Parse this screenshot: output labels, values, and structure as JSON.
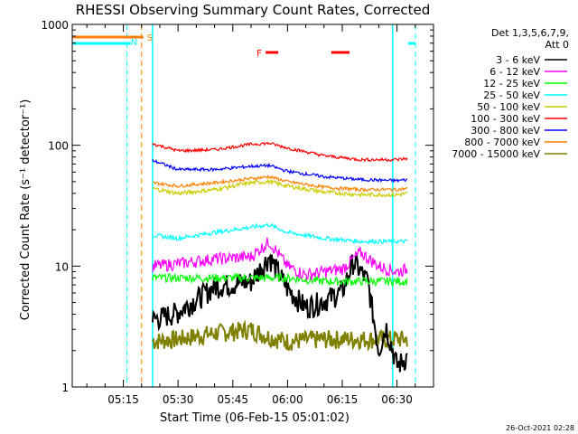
{
  "chart_data": {
    "type": "line",
    "title": "RHESSI Observing Summary Count Rates, Corrected",
    "xlabel": "Start Time (06-Feb-15 05:01:02)",
    "ylabel": "Corrected Count Rate (s⁻¹ detector⁻¹)",
    "y_scale": "log",
    "ylim": [
      1,
      1000
    ],
    "xlim": [
      "05:01",
      "06:40"
    ],
    "x_ticks": [
      "05:15",
      "05:30",
      "05:45",
      "06:00",
      "06:15",
      "06:30"
    ],
    "y_ticks": [
      "1",
      "10",
      "100",
      "1000"
    ],
    "grid": false,
    "legend_position": "top-right",
    "legend_header": [
      "Det 1,3,5,6,7,9,",
      "Att 0"
    ],
    "timestamp": "26-Oct-2021 02:28",
    "data_start": "05:23",
    "data_end": "06:33",
    "series": [
      {
        "name": "3 - 6 keV",
        "color": "#000000",
        "x": [
          "05:23",
          "05:30",
          "05:40",
          "05:50",
          "05:55",
          "06:00",
          "06:05",
          "06:10",
          "06:15",
          "06:18",
          "06:22",
          "06:25",
          "06:27",
          "06:30",
          "06:33"
        ],
        "values": [
          3.6,
          4.2,
          6.8,
          7.5,
          12,
          6.5,
          4.6,
          5.2,
          6.2,
          11,
          7.5,
          2.0,
          3.2,
          1.5,
          1.8
        ]
      },
      {
        "name": "6 - 12 keV",
        "color": "#ff00ff",
        "x": [
          "05:23",
          "05:30",
          "05:40",
          "05:50",
          "05:55",
          "06:00",
          "06:05",
          "06:10",
          "06:15",
          "06:20",
          "06:25",
          "06:30",
          "06:33"
        ],
        "values": [
          10,
          10.5,
          11.5,
          12,
          16,
          10,
          8.5,
          9,
          9.5,
          13,
          10,
          9,
          9.5
        ]
      },
      {
        "name": "12 - 25 keV",
        "color": "#00ff00",
        "x": [
          "05:23",
          "05:30",
          "05:40",
          "05:50",
          "06:00",
          "06:10",
          "06:20",
          "06:30",
          "06:33"
        ],
        "values": [
          8,
          8,
          8,
          8,
          8,
          7.5,
          7.5,
          7.5,
          7.5
        ]
      },
      {
        "name": "25 - 50 keV",
        "color": "#00ffff",
        "x": [
          "05:23",
          "05:30",
          "05:40",
          "05:50",
          "05:55",
          "06:00",
          "06:10",
          "06:20",
          "06:30",
          "06:33"
        ],
        "values": [
          18,
          17,
          19,
          21,
          22,
          19,
          17,
          16,
          16,
          16
        ]
      },
      {
        "name": "50 - 100 keV",
        "color": "#cccc00",
        "x": [
          "05:23",
          "05:30",
          "05:40",
          "05:50",
          "05:55",
          "06:00",
          "06:10",
          "06:20",
          "06:30",
          "06:33"
        ],
        "values": [
          44,
          40,
          43,
          49,
          50,
          46,
          41,
          39,
          39,
          40
        ]
      },
      {
        "name": "100 - 300 keV",
        "color": "#ff0000",
        "x": [
          "05:23",
          "05:30",
          "05:40",
          "05:50",
          "05:55",
          "06:00",
          "06:10",
          "06:20",
          "06:30",
          "06:33"
        ],
        "values": [
          103,
          90,
          92,
          102,
          104,
          95,
          82,
          76,
          76,
          78
        ]
      },
      {
        "name": "300 - 800 keV",
        "color": "#0000ff",
        "x": [
          "05:23",
          "05:30",
          "05:40",
          "05:50",
          "05:55",
          "06:00",
          "06:10",
          "06:20",
          "06:30",
          "06:33"
        ],
        "values": [
          75,
          63,
          63,
          67,
          68,
          61,
          55,
          52,
          51,
          52
        ]
      },
      {
        "name": "800 - 7000 keV",
        "color": "#ff8000",
        "x": [
          "05:23",
          "05:30",
          "05:40",
          "05:50",
          "05:55",
          "06:00",
          "06:10",
          "06:20",
          "06:30",
          "06:33"
        ],
        "values": [
          49,
          46,
          49,
          53,
          55,
          50,
          45,
          43,
          43,
          44
        ]
      },
      {
        "name": "7000 - 15000 keV",
        "color": "#808000",
        "x": [
          "05:23",
          "05:30",
          "05:40",
          "05:50",
          "05:55",
          "06:00",
          "06:10",
          "06:20",
          "06:30",
          "06:33"
        ],
        "values": [
          2.4,
          2.5,
          2.8,
          3.0,
          2.6,
          2.4,
          2.5,
          2.5,
          2.5,
          2.5
        ]
      }
    ],
    "annotations": [
      {
        "label": "N",
        "color": "#00ffff",
        "x": "05:16"
      },
      {
        "label": "S",
        "color": "#ff8000",
        "x": "05:20"
      },
      {
        "label": "F",
        "color": "#ff0000",
        "x": "05:55"
      }
    ]
  }
}
